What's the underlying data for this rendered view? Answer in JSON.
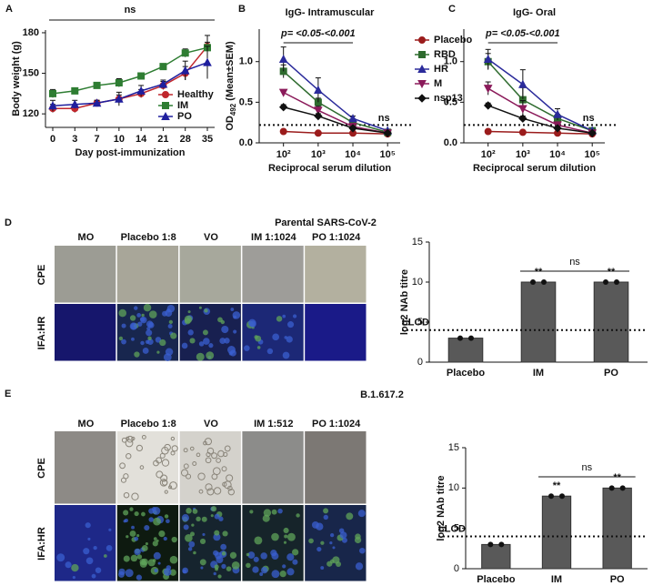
{
  "chart_data": [
    {
      "type": "line",
      "panel": "A",
      "annotation": "ns",
      "ylabel": "Body weight (g)",
      "xlabel": "Day post-immunization",
      "categories": [
        "0",
        "3",
        "7",
        "10",
        "14",
        "21",
        "28",
        "35"
      ],
      "series": [
        {
          "name": "Healthy",
          "color": "#c0272d",
          "marker": "circle",
          "values": [
            124,
            124,
            128,
            131,
            135,
            141,
            150,
            170
          ],
          "errors": [
            3,
            3,
            2,
            3,
            3,
            3,
            5,
            8
          ]
        },
        {
          "name": "IM",
          "color": "#2e7d32",
          "marker": "square",
          "values": [
            135,
            137,
            141,
            143,
            148,
            155,
            165,
            169
          ],
          "errors": [
            3,
            2,
            2,
            3,
            2,
            2,
            3,
            4
          ]
        },
        {
          "name": "PO",
          "color": "#1f1f9e",
          "marker": "triangle",
          "values": [
            126,
            127,
            128,
            131,
            137,
            142,
            152,
            158
          ],
          "errors": [
            4,
            3,
            2,
            5,
            4,
            3,
            7,
            12
          ]
        }
      ],
      "ylim": [
        110,
        182
      ],
      "yticks": [
        120,
        150,
        180
      ],
      "legend": "lower right"
    },
    {
      "type": "line",
      "panel": "B",
      "title": "IgG- Intramuscular",
      "annotation": "p= <0.05-<0.001",
      "end_annotation": "ns",
      "ylabel": [
        "OD",
        "492",
        " (Mean±SEM)"
      ],
      "xlabel": "Reciprocal serum dilution",
      "log_x": true,
      "x": [
        100,
        1000,
        10000,
        100000
      ],
      "xlim": [
        20,
        230000
      ],
      "xticks": [
        {
          "value": 100,
          "label": "10²"
        },
        {
          "value": 1000,
          "label": "10³"
        },
        {
          "value": 10000,
          "label": "10⁴"
        },
        {
          "value": 100000,
          "label": "10⁵"
        }
      ],
      "ylim": [
        0,
        1.4
      ],
      "yticks": [
        {
          "value": 0,
          "label": "0.0"
        },
        {
          "value": 0.5,
          "label": "0.5"
        },
        {
          "value": 1,
          "label": "1.0"
        }
      ],
      "cutoff": 0.22,
      "legend": "right",
      "series": [
        {
          "name": "Placebo",
          "color": "#9b1c1c",
          "marker": "circle",
          "values": [
            0.14,
            0.12,
            0.12,
            0.11
          ],
          "errors": [
            0.01,
            0.01,
            0.01,
            0.01
          ]
        },
        {
          "name": "RBD",
          "color": "#2e6b2e",
          "marker": "square",
          "values": [
            0.88,
            0.5,
            0.25,
            0.13
          ],
          "errors": [
            0.08,
            0.05,
            0.03,
            0.01
          ]
        },
        {
          "name": "HR",
          "color": "#2b2b9b",
          "marker": "triangle",
          "values": [
            1.03,
            0.65,
            0.3,
            0.15
          ],
          "errors": [
            0.15,
            0.15,
            0.03,
            0.01
          ]
        },
        {
          "name": "M",
          "color": "#8b1a5a",
          "marker": "down",
          "values": [
            0.62,
            0.4,
            0.2,
            0.12
          ],
          "errors": [
            0.03,
            0.05,
            0.02,
            0.01
          ]
        },
        {
          "name": "nsp13",
          "color": "#111111",
          "marker": "diamond",
          "values": [
            0.44,
            0.33,
            0.18,
            0.12
          ],
          "errors": [
            0.03,
            0.03,
            0.02,
            0.01
          ]
        }
      ]
    },
    {
      "type": "line",
      "panel": "C",
      "title": "IgG- Oral",
      "annotation": "p= <0.05-<0.001",
      "end_annotation": "ns",
      "xlabel": "Reciprocal serum dilution",
      "log_x": true,
      "x": [
        100,
        1000,
        10000,
        100000
      ],
      "xlim": [
        20,
        230000
      ],
      "xticks": [
        {
          "value": 100,
          "label": "10²"
        },
        {
          "value": 1000,
          "label": "10³"
        },
        {
          "value": 10000,
          "label": "10⁴"
        },
        {
          "value": 100000,
          "label": "10⁵"
        }
      ],
      "ylim": [
        0,
        1.4
      ],
      "yticks": [
        {
          "value": 0,
          "label": "0.0"
        },
        {
          "value": 0.5,
          "label": "0.5"
        },
        {
          "value": 1,
          "label": "1.0"
        }
      ],
      "cutoff": 0.22,
      "series": [
        {
          "color": "#9b1c1c",
          "marker": "circle",
          "values": [
            0.14,
            0.13,
            0.12,
            0.11
          ],
          "errors": [
            0.01,
            0.01,
            0.01,
            0.01
          ]
        },
        {
          "color": "#2e6b2e",
          "marker": "square",
          "values": [
            1.0,
            0.53,
            0.3,
            0.15
          ],
          "errors": [
            0.1,
            0.15,
            0.05,
            0.01
          ]
        },
        {
          "color": "#2b2b9b",
          "marker": "triangle",
          "values": [
            1.03,
            0.72,
            0.35,
            0.15
          ],
          "errors": [
            0.12,
            0.18,
            0.07,
            0.01
          ]
        },
        {
          "color": "#8b1a5a",
          "marker": "down",
          "values": [
            0.67,
            0.42,
            0.22,
            0.12
          ],
          "errors": [
            0.08,
            0.1,
            0.03,
            0.01
          ]
        },
        {
          "color": "#111111",
          "marker": "diamond",
          "values": [
            0.46,
            0.3,
            0.18,
            0.12
          ],
          "errors": [
            0.03,
            0.03,
            0.02,
            0.01
          ]
        }
      ]
    },
    {
      "type": "bar",
      "ylabel": "log2 NAb titre",
      "categories": [
        "Placebo",
        "IM",
        "PO"
      ],
      "values": [
        3,
        10,
        10
      ],
      "value_annotations": [
        null,
        "**",
        "**"
      ],
      "annotation": "ns",
      "color": "#595959",
      "reference_line": 4,
      "reference_label": "LLOD",
      "ylim": [
        0,
        15
      ],
      "yticks": [
        0,
        5,
        10,
        15
      ]
    },
    {
      "type": "bar",
      "ylabel": "log2 NAb titre",
      "categories": [
        "Placebo",
        "IM",
        "PO"
      ],
      "values": [
        3,
        9,
        10
      ],
      "value_annotations": [
        null,
        "**",
        "**"
      ],
      "annotation": "ns",
      "color": "#595959",
      "reference_line": 4,
      "reference_label": "LLOD",
      "ylim": [
        0,
        15
      ],
      "yticks": [
        0,
        5,
        10,
        15
      ]
    }
  ],
  "image_panels": [
    {
      "panel": "D",
      "title": "Parental SARS-CoV-2",
      "columns": [
        "MO",
        "Placebo 1:8",
        "VO",
        "IM 1:1024",
        "PO 1:1024"
      ],
      "rows": [
        "CPE",
        "IFA:HR"
      ]
    },
    {
      "panel": "E",
      "title": "B.1.617.2",
      "columns": [
        "MO",
        "Placebo 1:8",
        "VO",
        "IM 1:512",
        "PO 1:1024"
      ],
      "rows": [
        "CPE",
        "IFA:HR"
      ]
    }
  ]
}
